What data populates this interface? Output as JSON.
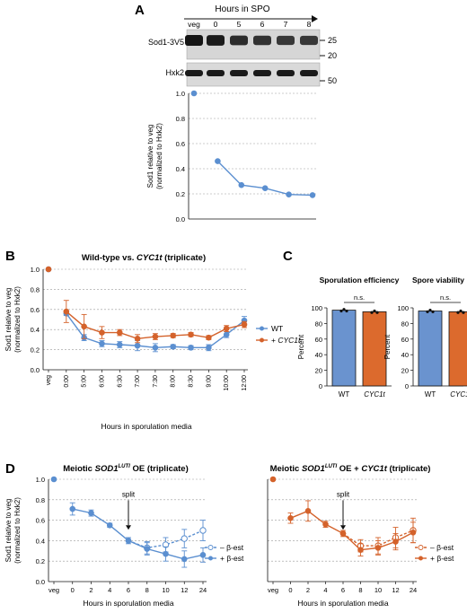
{
  "panels": {
    "A": {
      "letter": "A",
      "header": "Hours in SPO",
      "lanes": [
        "veg",
        "0",
        "5",
        "6",
        "7",
        "8"
      ],
      "blots": [
        {
          "label": "Sod1-3V5",
          "markers": [
            "25",
            "20"
          ]
        },
        {
          "label": "Hxk2",
          "markers": [
            "50"
          ]
        }
      ]
    },
    "B": {
      "letter": "B",
      "title_plain": "Wild-type vs. ",
      "title_italic": "CYC1t",
      "title_suffix": " (triplicate)"
    },
    "C": {
      "letter": "C"
    },
    "D": {
      "letter": "D",
      "left_title_pre": "Meiotic ",
      "left_title_gene": "SOD1",
      "left_title_sup": "LUTI",
      "left_title_post": " OE (triplicate)",
      "right_title_pre": "Meiotic ",
      "right_title_gene": "SOD1",
      "right_title_sup": "LUTI",
      "right_title_post": " OE + ",
      "right_title_italic": "CYC1t",
      "right_title_end": " (triplicate)",
      "split_label": "split"
    }
  },
  "colors": {
    "blue": "#5b8fd0",
    "orange": "#d4622b",
    "grid": "#9a9a9a",
    "bar_blue": "#6a93cf",
    "bar_orange": "#dc6a2d"
  },
  "chart_data": [
    {
      "id": "A",
      "type": "line",
      "x": [
        "veg",
        "0",
        "5",
        "6",
        "7",
        "8"
      ],
      "series": [
        {
          "values": [
            1.0,
            0.46,
            0.27,
            0.245,
            0.195,
            0.19
          ]
        }
      ],
      "ylabel": "Sod1 relative to veg",
      "ylabel2": "(normalized to Hxk2)",
      "ylim": [
        0,
        1.0
      ],
      "yticks": [
        "0.0",
        "0.2",
        "0.4",
        "0.6",
        "0.8",
        "1.0"
      ],
      "grid": true
    },
    {
      "id": "B",
      "type": "line",
      "x": [
        "veg",
        "0:00",
        "5:00",
        "6:00",
        "6:30",
        "7:00",
        "7:30",
        "8:00",
        "8:30",
        "9:00",
        "10:00",
        "12:00"
      ],
      "series": [
        {
          "name": "WT",
          "values": [
            1.0,
            0.56,
            0.32,
            0.26,
            0.25,
            0.24,
            0.22,
            0.23,
            0.22,
            0.22,
            0.35,
            0.49
          ],
          "errors": [
            0,
            0.02,
            0.03,
            0.03,
            0.03,
            0.05,
            0.04,
            0.02,
            0.02,
            0.03,
            0.03,
            0.04
          ]
        },
        {
          "name": "+ CYC1t",
          "values": [
            1.0,
            0.58,
            0.43,
            0.37,
            0.37,
            0.31,
            0.33,
            0.34,
            0.35,
            0.32,
            0.41,
            0.45
          ],
          "errors": [
            0,
            0.11,
            0.12,
            0.06,
            0.03,
            0.04,
            0.03,
            0.02,
            0.02,
            0.02,
            0.03,
            0.03
          ]
        }
      ],
      "legend": [
        "WT",
        "+ ",
        "CYC1t"
      ],
      "xlabel": "Hours in sporulation media",
      "ylabel": "Sod1 relative to veg",
      "ylabel2": "(normalized to Hxk2)",
      "ylim": [
        0,
        1.0
      ],
      "yticks": [
        "0.0",
        "0.2",
        "0.4",
        "0.6",
        "0.8",
        "1.0"
      ],
      "grid": true
    },
    {
      "id": "C1",
      "type": "bar",
      "title": "Sporulation efficiency",
      "categories": [
        "WT",
        "CYC1t"
      ],
      "values": [
        97,
        95
      ],
      "annotation": "n.s.",
      "ylabel": "Percent",
      "ylim": [
        0,
        100
      ],
      "yticks": [
        "0",
        "20",
        "40",
        "60",
        "80",
        "100"
      ]
    },
    {
      "id": "C2",
      "type": "bar",
      "title": "Spore viability",
      "categories": [
        "WT",
        "CYC1t"
      ],
      "values": [
        96,
        95
      ],
      "annotation": "n.s.",
      "ylabel": "Percent",
      "ylim": [
        0,
        100
      ],
      "yticks": [
        "0",
        "20",
        "40",
        "60",
        "80",
        "100"
      ]
    },
    {
      "id": "D1",
      "type": "line",
      "x": [
        "veg",
        "0",
        "2",
        "4",
        "6",
        "8",
        "10",
        "12",
        "24"
      ],
      "series": [
        {
          "name": "– β-est",
          "values": [
            1.0,
            0.71,
            0.67,
            0.55,
            0.4,
            0.33,
            0.36,
            0.42,
            0.5
          ],
          "errors": [
            0,
            0,
            0,
            0,
            0,
            0.06,
            0.07,
            0.09,
            0.1
          ]
        },
        {
          "name": "+ β-est",
          "values": [
            1.0,
            0.71,
            0.67,
            0.55,
            0.4,
            0.32,
            0.27,
            0.22,
            0.26
          ],
          "errors": [
            0,
            0.06,
            0.03,
            0.02,
            0.03,
            0.06,
            0.07,
            0.08,
            0.07
          ]
        }
      ],
      "split_at": "6",
      "legend": [
        "– β-est",
        "+ β-est"
      ],
      "xlabel": "Hours in sporulation media",
      "ylabel": "Sod1 relative to veg",
      "ylabel2": "(normalized to Hxk2)",
      "ylim": [
        0,
        1.0
      ],
      "yticks": [
        "0.0",
        "0.2",
        "0.4",
        "0.6",
        "0.8",
        "1.0"
      ],
      "grid": true
    },
    {
      "id": "D2",
      "type": "line",
      "x": [
        "veg",
        "0",
        "2",
        "4",
        "6",
        "8",
        "10",
        "12",
        "24"
      ],
      "series": [
        {
          "name": "– β-est",
          "values": [
            1.0,
            0.62,
            0.69,
            0.56,
            0.47,
            0.35,
            0.35,
            0.43,
            0.5
          ],
          "errors": [
            0,
            0,
            0,
            0,
            0,
            0.06,
            0.08,
            0.1,
            0.12
          ]
        },
        {
          "name": "+ β-est",
          "values": [
            1.0,
            0.62,
            0.69,
            0.56,
            0.47,
            0.31,
            0.33,
            0.39,
            0.48
          ],
          "errors": [
            0,
            0.05,
            0.1,
            0.03,
            0.03,
            0.06,
            0.07,
            0.08,
            0.1
          ]
        }
      ],
      "split_at": "6",
      "legend": [
        "– β-est",
        "+ β-est"
      ],
      "xlabel": "Hours in sporulation media",
      "ylim": [
        0,
        1.0
      ],
      "grid": true
    }
  ]
}
